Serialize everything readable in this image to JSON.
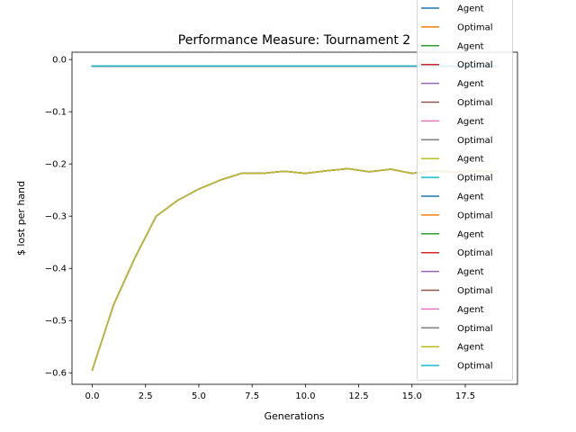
{
  "chart_data": {
    "type": "line",
    "title": "Performance Measure: Tournament 2",
    "xlabel": "Generations",
    "ylabel": "$ lost per hand",
    "xlim": [
      -0.95,
      19.95
    ],
    "ylim": [
      -0.622,
      0.014
    ],
    "xticks": [
      0.0,
      2.5,
      5.0,
      7.5,
      10.0,
      12.5,
      15.0,
      17.5
    ],
    "xtick_labels": [
      "0.0",
      "2.5",
      "5.0",
      "7.5",
      "10.0",
      "12.5",
      "15.0",
      "17.5"
    ],
    "yticks": [
      0.0,
      -0.1,
      -0.2,
      -0.3,
      -0.4,
      -0.5,
      -0.6
    ],
    "ytick_labels": [
      "0.0",
      "−0.1",
      "−0.2",
      "−0.3",
      "−0.4",
      "−0.5",
      "−0.6"
    ],
    "grid": false,
    "legend": "upper right",
    "x": [
      0,
      1,
      2,
      3,
      4,
      5,
      6,
      7,
      8,
      9,
      10,
      11,
      12,
      13,
      14,
      15,
      16,
      17,
      18,
      19
    ],
    "series": [
      {
        "name": "Agent",
        "color": "#1f77b4",
        "values": [
          -0.595,
          -0.47,
          -0.38,
          -0.3,
          -0.27,
          -0.248,
          -0.231,
          -0.218,
          -0.218,
          -0.214,
          -0.218,
          -0.213,
          -0.209,
          -0.215,
          -0.21,
          -0.218,
          -0.213,
          -0.216,
          -0.213,
          -0.216
        ]
      },
      {
        "name": "Optimal",
        "color": "#ff7f0e",
        "values": [
          -0.0125,
          -0.0125,
          -0.0125,
          -0.0125,
          -0.0125,
          -0.0125,
          -0.0125,
          -0.0125,
          -0.0125,
          -0.0125,
          -0.0125,
          -0.0125,
          -0.0125,
          -0.0125,
          -0.0125,
          -0.0125,
          -0.0125,
          -0.0125,
          -0.0125,
          -0.0125
        ]
      },
      {
        "name": "Agent",
        "color": "#2ca02c",
        "values": [
          -0.595,
          -0.47,
          -0.38,
          -0.3,
          -0.27,
          -0.248,
          -0.231,
          -0.218,
          -0.218,
          -0.214,
          -0.218,
          -0.213,
          -0.209,
          -0.215,
          -0.21,
          -0.218,
          -0.213,
          -0.216,
          -0.213,
          -0.216
        ]
      },
      {
        "name": "Optimal",
        "color": "#d62728",
        "values": [
          -0.0125,
          -0.0125,
          -0.0125,
          -0.0125,
          -0.0125,
          -0.0125,
          -0.0125,
          -0.0125,
          -0.0125,
          -0.0125,
          -0.0125,
          -0.0125,
          -0.0125,
          -0.0125,
          -0.0125,
          -0.0125,
          -0.0125,
          -0.0125,
          -0.0125,
          -0.0125
        ]
      },
      {
        "name": "Agent",
        "color": "#9467bd",
        "values": [
          -0.595,
          -0.47,
          -0.38,
          -0.3,
          -0.27,
          -0.248,
          -0.231,
          -0.218,
          -0.218,
          -0.214,
          -0.218,
          -0.213,
          -0.209,
          -0.215,
          -0.21,
          -0.218,
          -0.213,
          -0.216,
          -0.213,
          -0.216
        ]
      },
      {
        "name": "Optimal",
        "color": "#8c564b",
        "values": [
          -0.0125,
          -0.0125,
          -0.0125,
          -0.0125,
          -0.0125,
          -0.0125,
          -0.0125,
          -0.0125,
          -0.0125,
          -0.0125,
          -0.0125,
          -0.0125,
          -0.0125,
          -0.0125,
          -0.0125,
          -0.0125,
          -0.0125,
          -0.0125,
          -0.0125,
          -0.0125
        ]
      },
      {
        "name": "Agent",
        "color": "#e377c2",
        "values": [
          -0.595,
          -0.47,
          -0.38,
          -0.3,
          -0.27,
          -0.248,
          -0.231,
          -0.218,
          -0.218,
          -0.214,
          -0.218,
          -0.213,
          -0.209,
          -0.215,
          -0.21,
          -0.218,
          -0.213,
          -0.216,
          -0.213,
          -0.216
        ]
      },
      {
        "name": "Optimal",
        "color": "#7f7f7f",
        "values": [
          -0.0125,
          -0.0125,
          -0.0125,
          -0.0125,
          -0.0125,
          -0.0125,
          -0.0125,
          -0.0125,
          -0.0125,
          -0.0125,
          -0.0125,
          -0.0125,
          -0.0125,
          -0.0125,
          -0.0125,
          -0.0125,
          -0.0125,
          -0.0125,
          -0.0125,
          -0.0125
        ]
      },
      {
        "name": "Agent",
        "color": "#bcbd22",
        "values": [
          -0.595,
          -0.47,
          -0.38,
          -0.3,
          -0.27,
          -0.248,
          -0.231,
          -0.218,
          -0.218,
          -0.214,
          -0.218,
          -0.213,
          -0.209,
          -0.215,
          -0.21,
          -0.218,
          -0.213,
          -0.216,
          -0.213,
          -0.216
        ]
      },
      {
        "name": "Optimal",
        "color": "#17becf",
        "values": [
          -0.0125,
          -0.0125,
          -0.0125,
          -0.0125,
          -0.0125,
          -0.0125,
          -0.0125,
          -0.0125,
          -0.0125,
          -0.0125,
          -0.0125,
          -0.0125,
          -0.0125,
          -0.0125,
          -0.0125,
          -0.0125,
          -0.0125,
          -0.0125,
          -0.0125,
          -0.0125
        ]
      },
      {
        "name": "Agent",
        "color": "#1f77b4",
        "values": [
          -0.595,
          -0.47,
          -0.38,
          -0.3,
          -0.27,
          -0.248,
          -0.231,
          -0.218,
          -0.218,
          -0.214,
          -0.218,
          -0.213,
          -0.209,
          -0.215,
          -0.21,
          -0.218,
          -0.213,
          -0.216,
          -0.213,
          -0.216
        ]
      },
      {
        "name": "Optimal",
        "color": "#ff7f0e",
        "values": [
          -0.0125,
          -0.0125,
          -0.0125,
          -0.0125,
          -0.0125,
          -0.0125,
          -0.0125,
          -0.0125,
          -0.0125,
          -0.0125,
          -0.0125,
          -0.0125,
          -0.0125,
          -0.0125,
          -0.0125,
          -0.0125,
          -0.0125,
          -0.0125,
          -0.0125,
          -0.0125
        ]
      },
      {
        "name": "Agent",
        "color": "#2ca02c",
        "values": [
          -0.595,
          -0.47,
          -0.38,
          -0.3,
          -0.27,
          -0.248,
          -0.231,
          -0.218,
          -0.218,
          -0.214,
          -0.218,
          -0.213,
          -0.209,
          -0.215,
          -0.21,
          -0.218,
          -0.213,
          -0.216,
          -0.213,
          -0.216
        ]
      },
      {
        "name": "Optimal",
        "color": "#d62728",
        "values": [
          -0.0125,
          -0.0125,
          -0.0125,
          -0.0125,
          -0.0125,
          -0.0125,
          -0.0125,
          -0.0125,
          -0.0125,
          -0.0125,
          -0.0125,
          -0.0125,
          -0.0125,
          -0.0125,
          -0.0125,
          -0.0125,
          -0.0125,
          -0.0125,
          -0.0125,
          -0.0125
        ]
      },
      {
        "name": "Agent",
        "color": "#9467bd",
        "values": [
          -0.595,
          -0.47,
          -0.38,
          -0.3,
          -0.27,
          -0.248,
          -0.231,
          -0.218,
          -0.218,
          -0.214,
          -0.218,
          -0.213,
          -0.209,
          -0.215,
          -0.21,
          -0.218,
          -0.213,
          -0.216,
          -0.213,
          -0.216
        ]
      },
      {
        "name": "Optimal",
        "color": "#8c564b",
        "values": [
          -0.0125,
          -0.0125,
          -0.0125,
          -0.0125,
          -0.0125,
          -0.0125,
          -0.0125,
          -0.0125,
          -0.0125,
          -0.0125,
          -0.0125,
          -0.0125,
          -0.0125,
          -0.0125,
          -0.0125,
          -0.0125,
          -0.0125,
          -0.0125,
          -0.0125,
          -0.0125
        ]
      },
      {
        "name": "Agent",
        "color": "#e377c2",
        "values": [
          -0.595,
          -0.47,
          -0.38,
          -0.3,
          -0.27,
          -0.248,
          -0.231,
          -0.218,
          -0.218,
          -0.214,
          -0.218,
          -0.213,
          -0.209,
          -0.215,
          -0.21,
          -0.218,
          -0.213,
          -0.216,
          -0.213,
          -0.216
        ]
      },
      {
        "name": "Optimal",
        "color": "#7f7f7f",
        "values": [
          -0.0125,
          -0.0125,
          -0.0125,
          -0.0125,
          -0.0125,
          -0.0125,
          -0.0125,
          -0.0125,
          -0.0125,
          -0.0125,
          -0.0125,
          -0.0125,
          -0.0125,
          -0.0125,
          -0.0125,
          -0.0125,
          -0.0125,
          -0.0125,
          -0.0125,
          -0.0125
        ]
      },
      {
        "name": "Agent",
        "color": "#bcbd22",
        "values": [
          -0.595,
          -0.47,
          -0.38,
          -0.3,
          -0.27,
          -0.248,
          -0.231,
          -0.218,
          -0.218,
          -0.214,
          -0.218,
          -0.213,
          -0.209,
          -0.215,
          -0.21,
          -0.218,
          -0.213,
          -0.216,
          -0.213,
          -0.216
        ]
      },
      {
        "name": "Optimal",
        "color": "#17becf",
        "values": [
          -0.0125,
          -0.0125,
          -0.0125,
          -0.0125,
          -0.0125,
          -0.0125,
          -0.0125,
          -0.0125,
          -0.0125,
          -0.0125,
          -0.0125,
          -0.0125,
          -0.0125,
          -0.0125,
          -0.0125,
          -0.0125,
          -0.0125,
          -0.0125,
          -0.0125,
          -0.0125
        ]
      }
    ]
  }
}
